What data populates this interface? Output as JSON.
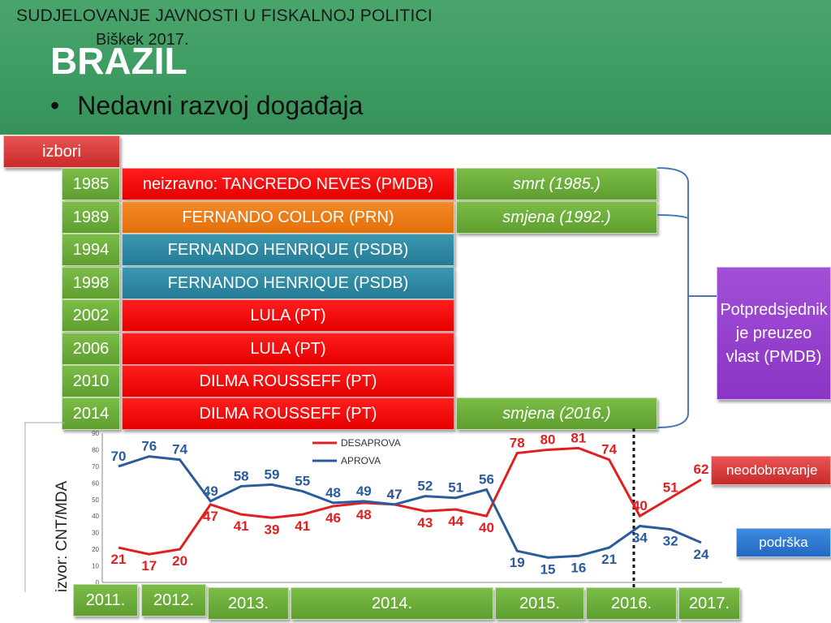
{
  "header": {
    "title": "SUDJELOVANJE JAVNOSTI U FISKALNOJ POLITICI",
    "subtitle": "Biškek 2017.",
    "heading": "BRAZIL",
    "bullet": "Nedavni razvoj događaja"
  },
  "label_izbori": "izbori",
  "elections": [
    {
      "year": "1985",
      "president": "neizravno: TANCREDO NEVES (PMDB)",
      "note": "smrt (1985.)"
    },
    {
      "year": "1989",
      "president": "FERNANDO COLLOR (PRN)",
      "note": "smjena (1992.)"
    },
    {
      "year": "1994",
      "president": "FERNANDO HENRIQUE (PSDB)",
      "note": ""
    },
    {
      "year": "1998",
      "president": "FERNANDO HENRIQUE (PSDB)",
      "note": ""
    },
    {
      "year": "2002",
      "president": "LULA (PT)",
      "note": ""
    },
    {
      "year": "2006",
      "president": "LULA (PT)",
      "note": ""
    },
    {
      "year": "2010",
      "president": "DILMA ROUSSEFF (PT)",
      "note": ""
    },
    {
      "year": "2014",
      "president": "DILMA ROUSSEFF (PT)",
      "note": "smjena (2016.)"
    }
  ],
  "vice_label": "Potpredsjednik je preuzeo vlast (PMDB)",
  "legend_disapproval": "neodobravanje",
  "legend_support": "podrška",
  "source": "izvor: CNT/MDA",
  "timeline_years": [
    "2011.",
    "2012.",
    "2013.",
    "2014.",
    "2015.",
    "2016.",
    "2017."
  ],
  "colors": {
    "disapprove": "#e02020",
    "approve": "#2a5b9c",
    "header": "#3c9a61"
  },
  "chart_data": {
    "type": "line",
    "series": [
      {
        "name": "DESAPROVA",
        "values": [
          21,
          17,
          20,
          47,
          41,
          39,
          41,
          46,
          48,
          47,
          43,
          44,
          40,
          78,
          80,
          81,
          74,
          40,
          51,
          62
        ]
      },
      {
        "name": "APROVA",
        "values": [
          70,
          76,
          74,
          49,
          58,
          59,
          55,
          48,
          49,
          47,
          52,
          51,
          56,
          19,
          15,
          16,
          21,
          34,
          32,
          24
        ]
      }
    ],
    "yticks": [
      0,
      10,
      20,
      30,
      40,
      50,
      60,
      70,
      80,
      90
    ],
    "ylim": [
      0,
      90
    ],
    "grid": false,
    "legend": "top-center"
  }
}
